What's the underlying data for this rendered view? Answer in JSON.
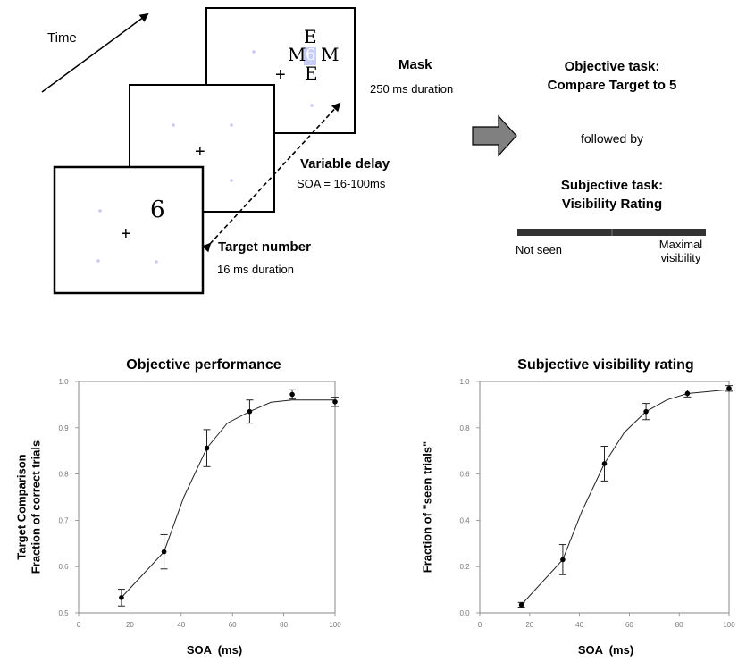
{
  "diagram": {
    "time_label": "Time",
    "mask": {
      "title": "Mask",
      "duration": "250 ms duration",
      "letters": {
        "top": "E",
        "left": "M",
        "center": "6",
        "right": "M",
        "bottom": "E"
      }
    },
    "variable_delay": {
      "title": "Variable delay",
      "soa": "SOA = 16-100ms"
    },
    "target": {
      "title": "Target number",
      "duration": "16 ms duration",
      "digit": "6"
    },
    "fixation": "+",
    "objective_task": {
      "line1": "Objective task:",
      "line2": "Compare Target to 5"
    },
    "followed_by": "followed by",
    "subjective_task": {
      "line1": "Subjective task:",
      "line2": "Visibility Rating"
    },
    "scale": {
      "left_label": "Not seen",
      "right_label_line1": "Maximal",
      "right_label_line2": "visibility"
    }
  },
  "colors": {
    "dots": "#c9c9f0",
    "mask_patch": "#c6cdf6",
    "arrow_fill": "#808080",
    "scale_bar": "#333333"
  },
  "chart_data": [
    {
      "type": "line",
      "title": "Objective performance",
      "xlabel": "SOA  (ms)",
      "ylabel_line1": "Target Comparison",
      "ylabel_line2": "Fraction of correct trials",
      "xlim": [
        0,
        100
      ],
      "ylim": [
        0.5,
        1.0
      ],
      "xticks": [
        0,
        20,
        40,
        60,
        80,
        100
      ],
      "yticks": [
        0.5,
        0.6,
        0.7,
        0.8,
        0.9,
        1.0
      ],
      "xtick_labels": [
        "0",
        "20",
        "40",
        "60",
        "80",
        "100"
      ],
      "ytick_labels": [
        "0.5",
        "0.6",
        "0.7",
        "0.8",
        "0.9",
        "1.0"
      ],
      "x": [
        16.7,
        33.3,
        50,
        66.7,
        83.3,
        100
      ],
      "y": [
        0.533,
        0.632,
        0.856,
        0.935,
        0.972,
        0.956
      ],
      "err": [
        0.018,
        0.037,
        0.04,
        0.025,
        0.01,
        0.01
      ],
      "line_x": [
        16.7,
        33.3,
        41,
        50,
        58,
        66.7,
        75,
        83.3,
        100
      ],
      "line_y": [
        0.533,
        0.632,
        0.75,
        0.856,
        0.91,
        0.935,
        0.955,
        0.96,
        0.96
      ]
    },
    {
      "type": "line",
      "title": "Subjective visibility rating",
      "xlabel": "SOA  (ms)",
      "ylabel": "Fraction of \"seen trials\"",
      "xlim": [
        0,
        100
      ],
      "ylim": [
        0,
        1.0
      ],
      "xticks": [
        0,
        20,
        40,
        60,
        80,
        100
      ],
      "yticks": [
        0,
        0.2,
        0.4,
        0.6,
        0.8,
        1.0
      ],
      "xtick_labels": [
        "0",
        "20",
        "40",
        "60",
        "80",
        "100"
      ],
      "ytick_labels": [
        "0.0",
        "0.2",
        "0.4",
        "0.6",
        "0.8",
        "1.0"
      ],
      "x": [
        16.7,
        33.3,
        50,
        66.7,
        83.3,
        100
      ],
      "y": [
        0.035,
        0.23,
        0.645,
        0.87,
        0.948,
        0.97
      ],
      "err": [
        0.01,
        0.065,
        0.075,
        0.035,
        0.015,
        0.012
      ],
      "line_x": [
        16.7,
        33.3,
        41,
        50,
        58,
        66.7,
        75,
        83.3,
        100
      ],
      "line_y": [
        0.035,
        0.23,
        0.44,
        0.645,
        0.78,
        0.87,
        0.92,
        0.948,
        0.965
      ]
    }
  ]
}
